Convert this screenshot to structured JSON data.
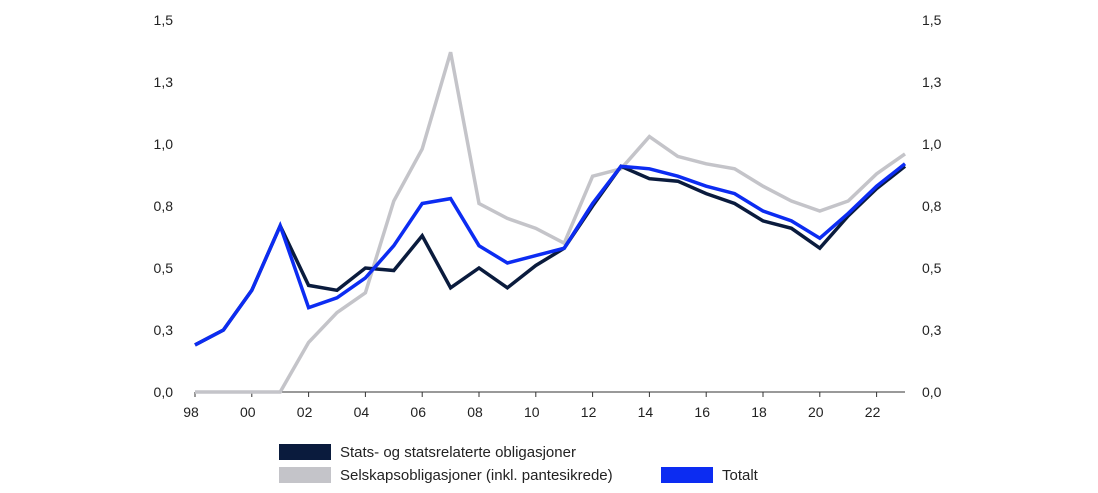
{
  "colors": {
    "stats": "#0a1b3d",
    "selskap": "#c4c4c9",
    "totalt": "#0c2cf2",
    "axis": "#333333"
  },
  "chart_data": {
    "type": "line",
    "title": "",
    "xlabel": "",
    "ylabel": "",
    "x": [
      1998,
      1999,
      2000,
      2001,
      2002,
      2003,
      2004,
      2005,
      2006,
      2007,
      2008,
      2009,
      2010,
      2011,
      2012,
      2013,
      2014,
      2015,
      2016,
      2017,
      2018,
      2019,
      2020,
      2021,
      2022,
      2023
    ],
    "xlim": [
      1998,
      2023
    ],
    "x_ticks": [
      1998,
      2000,
      2002,
      2004,
      2006,
      2008,
      2010,
      2012,
      2014,
      2016,
      2018,
      2020,
      2022
    ],
    "x_tick_labels": [
      "98",
      "00",
      "02",
      "04",
      "06",
      "08",
      "10",
      "12",
      "14",
      "16",
      "18",
      "20",
      "22"
    ],
    "ylim": [
      0,
      1.5
    ],
    "y_ticks": [
      0,
      0.25,
      0.5,
      0.75,
      1.0,
      1.25,
      1.5
    ],
    "y_tick_labels": [
      "0,0",
      "0,3",
      "0,5",
      "0,8",
      "1,0",
      "1,3",
      "1,5"
    ],
    "grid": false,
    "legend_position": "bottom",
    "series": [
      {
        "name": "Stats- og statsrelaterte obligasjoner",
        "color_key": "stats",
        "values": [
          0.19,
          0.25,
          0.41,
          0.67,
          0.43,
          0.41,
          0.5,
          0.49,
          0.63,
          0.42,
          0.5,
          0.42,
          0.51,
          0.58,
          0.75,
          0.91,
          0.86,
          0.85,
          0.8,
          0.76,
          0.69,
          0.66,
          0.58,
          0.71,
          0.82,
          0.91
        ]
      },
      {
        "name": "Selskapsobligasjoner (inkl. pantesikrede)",
        "color_key": "selskap",
        "values": [
          0.0,
          0.0,
          0.0,
          0.0,
          0.2,
          0.32,
          0.4,
          0.77,
          0.98,
          1.37,
          0.76,
          0.7,
          0.66,
          0.6,
          0.87,
          0.9,
          1.03,
          0.95,
          0.92,
          0.9,
          0.83,
          0.77,
          0.73,
          0.77,
          0.88,
          0.96
        ]
      },
      {
        "name": "Totalt",
        "color_key": "totalt",
        "values": [
          0.19,
          0.25,
          0.41,
          0.67,
          0.34,
          0.38,
          0.46,
          0.59,
          0.76,
          0.78,
          0.59,
          0.52,
          0.55,
          0.58,
          0.76,
          0.91,
          0.9,
          0.87,
          0.83,
          0.8,
          0.73,
          0.69,
          0.62,
          0.72,
          0.83,
          0.92
        ]
      }
    ]
  }
}
